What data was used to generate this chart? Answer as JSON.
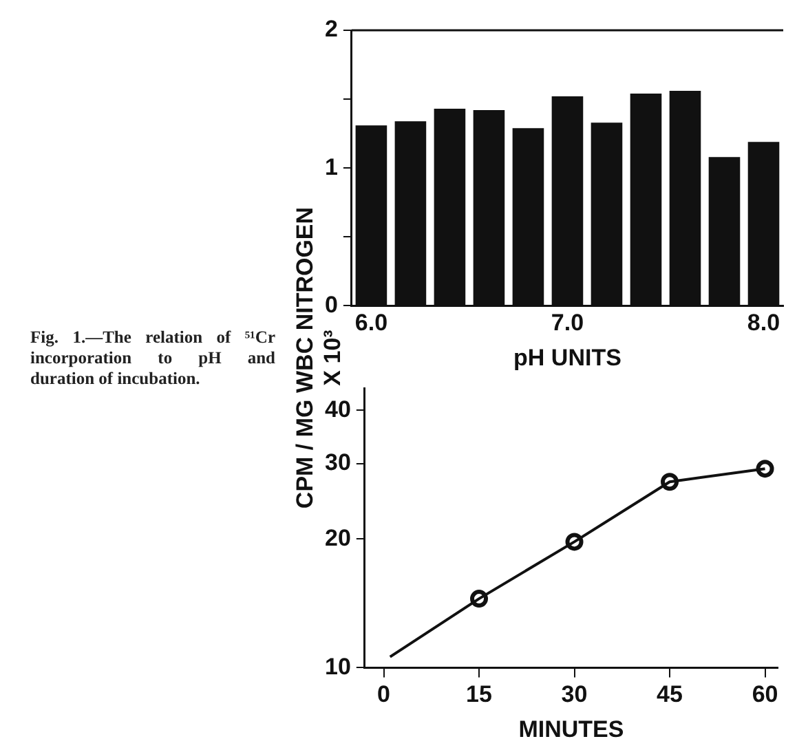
{
  "chart_data": [
    {
      "type": "bar",
      "categories": [
        "6.0",
        null,
        null,
        null,
        null,
        "7.0",
        null,
        null,
        null,
        null,
        "8.0"
      ],
      "values": [
        1.31,
        1.34,
        1.43,
        1.42,
        1.29,
        1.52,
        1.33,
        1.54,
        1.56,
        1.08,
        1.19
      ],
      "color": "#111111",
      "xlabel": "pH UNITS",
      "ylim": [
        0,
        2
      ],
      "yticks": [
        0,
        {
          "value": 0.5,
          "label": null
        },
        1,
        {
          "value": 1.5,
          "label": null
        },
        2
      ],
      "ylabel": "CPM / MG WBC NITROGEN\nX 10³",
      "grid": false,
      "legend": false
    },
    {
      "type": "line",
      "xlabel": "MINUTES",
      "log": "y",
      "xlim": [
        -3,
        62
      ],
      "xticks": [
        0,
        15,
        30,
        45,
        60
      ],
      "ylim": [
        10,
        45
      ],
      "yticks": [
        10,
        20,
        30,
        40
      ],
      "grid": false,
      "legend": false,
      "series": [
        {
          "type": "line",
          "x": [
            1,
            15,
            30,
            45,
            60
          ],
          "values": [
            10.6,
            14.5,
            19.7,
            27.2,
            29.2
          ],
          "color": "#111111",
          "marker": "none"
        },
        {
          "type": "scatter",
          "x": [
            15,
            30,
            45,
            60
          ],
          "values": [
            14.5,
            19.7,
            27.2,
            29.2
          ],
          "color": "#111111",
          "marker": "circle"
        }
      ],
      "annotations": [
        "Fig. 1.—The relation of ⁵¹Cr incorporation to pH and duration of incubation."
      ]
    }
  ]
}
